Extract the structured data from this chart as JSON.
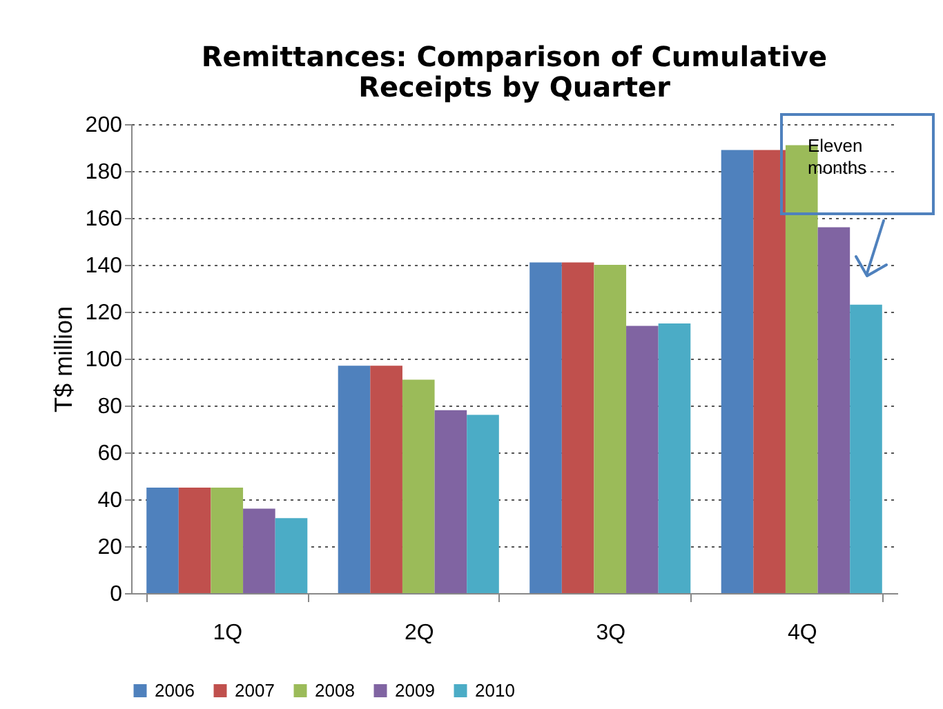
{
  "chart_data": {
    "type": "bar",
    "title": "Remittances: Comparison of Cumulative\nReceipts by Quarter",
    "ylabel": "T$ million",
    "categories": [
      "1Q",
      "2Q",
      "3Q",
      "4Q"
    ],
    "series": [
      {
        "name": "2006",
        "color": "#4f81bd",
        "values": [
          45,
          97,
          141,
          189
        ]
      },
      {
        "name": "2007",
        "color": "#c0504d",
        "values": [
          45,
          97,
          141,
          189
        ]
      },
      {
        "name": "2008",
        "color": "#9bbb59",
        "values": [
          45,
          91,
          140,
          191
        ]
      },
      {
        "name": "2009",
        "color": "#8064a2",
        "values": [
          36,
          78,
          114,
          156
        ]
      },
      {
        "name": "2010",
        "color": "#4bacc6",
        "values": [
          32,
          76,
          115,
          123
        ]
      }
    ],
    "ylim": [
      0,
      200
    ],
    "yticks": [
      0,
      20,
      40,
      60,
      80,
      100,
      120,
      140,
      160,
      180,
      200
    ],
    "grid": "y",
    "legend": "bottom",
    "annotations": [
      "Eleven months"
    ]
  }
}
